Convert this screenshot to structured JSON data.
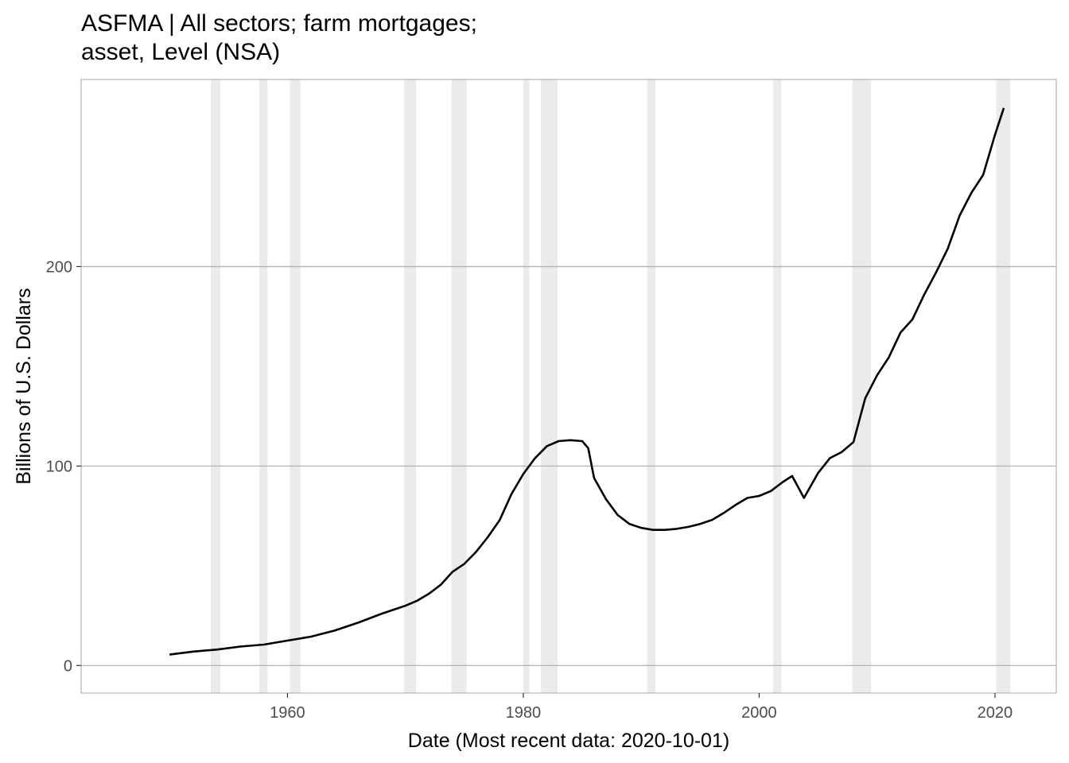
{
  "chart_data": {
    "type": "line",
    "title_line1": "ASFMA | All sectors; farm mortgages;",
    "title_line2": "asset, Level (NSA)",
    "xlabel": "Date (Most recent data: 2020-10-01)",
    "ylabel": "Billions of U.S. Dollars",
    "xlim": [
      1942.5,
      2025.2
    ],
    "ylim": [
      -13.8,
      293.8
    ],
    "x_ticks": [
      1960,
      1980,
      2000,
      2020
    ],
    "x_tick_labels": [
      "1960",
      "1980",
      "2000",
      "2020"
    ],
    "y_ticks": [
      0,
      100,
      200
    ],
    "y_tick_labels": [
      "0",
      "100",
      "200"
    ],
    "grid": "horizontal-major",
    "recession_color": "#ebebeb",
    "line_color": "#000000",
    "recessions": [
      [
        1953.5,
        1954.3
      ],
      [
        1957.6,
        1958.3
      ],
      [
        1960.2,
        1961.1
      ],
      [
        1969.9,
        1970.9
      ],
      [
        1973.9,
        1975.2
      ],
      [
        1980.0,
        1980.5
      ],
      [
        1981.5,
        1982.9
      ],
      [
        1990.5,
        1991.2
      ],
      [
        2001.2,
        2001.9
      ],
      [
        2007.9,
        2009.5
      ],
      [
        2020.1,
        2021.3
      ]
    ],
    "x": [
      1950.0,
      1952.0,
      1954.0,
      1956.0,
      1958.0,
      1960.0,
      1962.0,
      1964.0,
      1966.0,
      1968.0,
      1970.0,
      1971.0,
      1972.0,
      1973.0,
      1974.0,
      1975.0,
      1976.0,
      1977.0,
      1978.0,
      1979.0,
      1980.0,
      1981.0,
      1982.0,
      1983.0,
      1984.0,
      1985.0,
      1985.5,
      1986.0,
      1987.0,
      1988.0,
      1989.0,
      1990.0,
      1991.0,
      1992.0,
      1993.0,
      1994.0,
      1995.0,
      1996.0,
      1997.0,
      1998.0,
      1999.0,
      2000.0,
      2001.0,
      2002.0,
      2002.8,
      2003.8,
      2005.0,
      2006.0,
      2007.0,
      2008.0,
      2009.0,
      2010.0,
      2011.0,
      2012.0,
      2013.0,
      2014.0,
      2015.0,
      2016.0,
      2017.0,
      2018.0,
      2019.0,
      2020.0,
      2020.75
    ],
    "values": [
      5.5,
      7.0,
      8.0,
      9.5,
      10.5,
      12.5,
      14.5,
      17.5,
      21.5,
      26.0,
      30.0,
      32.5,
      36.0,
      40.5,
      47.0,
      51.0,
      57.0,
      64.5,
      73.0,
      86.0,
      96.0,
      104.0,
      110.0,
      112.5,
      113.0,
      112.5,
      109.0,
      94.0,
      83.5,
      75.5,
      71.0,
      69.0,
      68.0,
      68.0,
      68.5,
      69.5,
      71.0,
      73.0,
      76.5,
      80.5,
      84.0,
      85.0,
      87.5,
      92.0,
      95.0,
      84.0,
      96.5,
      104.0,
      107.0,
      112.0,
      134.0,
      145.5,
      154.5,
      167.0,
      173.5,
      186.0,
      197.0,
      209.0,
      225.5,
      237.0,
      246.0,
      266.0,
      279.5
    ]
  }
}
